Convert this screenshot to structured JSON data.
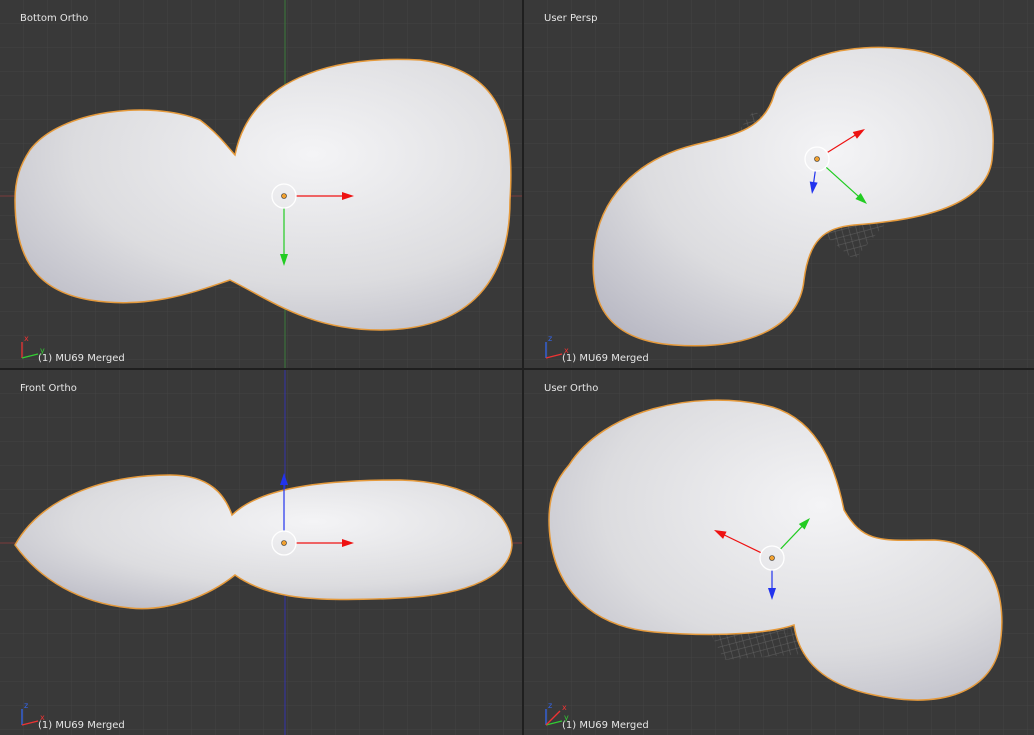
{
  "viewports": [
    {
      "label": "Bottom Ortho",
      "object": "(1) MU69 Merged",
      "axes": [
        "x",
        "y"
      ]
    },
    {
      "label": "User Persp",
      "object": "(1) MU69 Merged",
      "axes": [
        "z",
        "x"
      ]
    },
    {
      "label": "Front Ortho",
      "object": "(1) MU69 Merged",
      "axes": [
        "z",
        "x"
      ]
    },
    {
      "label": "User Ortho",
      "object": "(1) MU69 Merged",
      "axes": [
        "z",
        "y",
        "x"
      ]
    }
  ]
}
